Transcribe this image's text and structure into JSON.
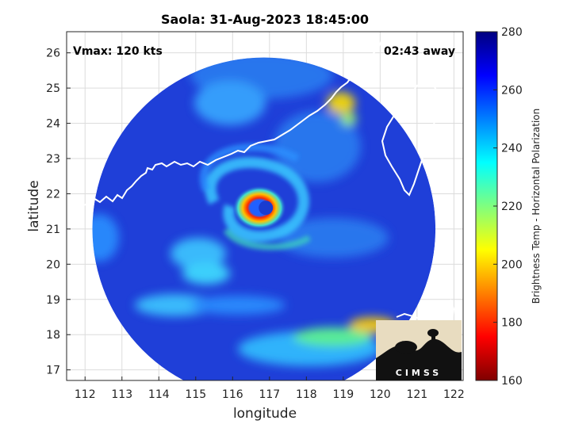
{
  "header": {
    "title": "Saola: 31-Aug-2023 18:45:00",
    "vmax": "Vmax: 120 kts",
    "away": "02:43 away"
  },
  "axes": {
    "xlabel": "longitude",
    "ylabel": "latitude",
    "xticks": [
      112,
      113,
      114,
      115,
      116,
      117,
      118,
      119,
      120,
      121,
      122
    ],
    "yticks": [
      17,
      18,
      19,
      20,
      21,
      22,
      23,
      24,
      25,
      26
    ],
    "xlim": [
      111.5,
      122.25
    ],
    "ylim": [
      16.7,
      26.6
    ],
    "grid": true
  },
  "colorbar": {
    "label": "Brightness Temp - Horizontal Polarization",
    "ticks": [
      160,
      180,
      200,
      220,
      240,
      260,
      280
    ],
    "range": [
      160,
      280
    ],
    "colormap": "jet"
  },
  "storm": {
    "name": "Saola",
    "center_lon": 116.9,
    "center_lat": 21.6,
    "eye_temp_k": 265,
    "eyewall_temp_k": 185
  },
  "swath": {
    "center_lon": 116.85,
    "center_lat": 21.0,
    "radius_deg": 4.65
  },
  "logo": {
    "text": "CIMSS"
  },
  "colors": {
    "background_swath": "#1f3fd8",
    "coastline": "#ffffff",
    "eyewall": "#ff3000"
  }
}
